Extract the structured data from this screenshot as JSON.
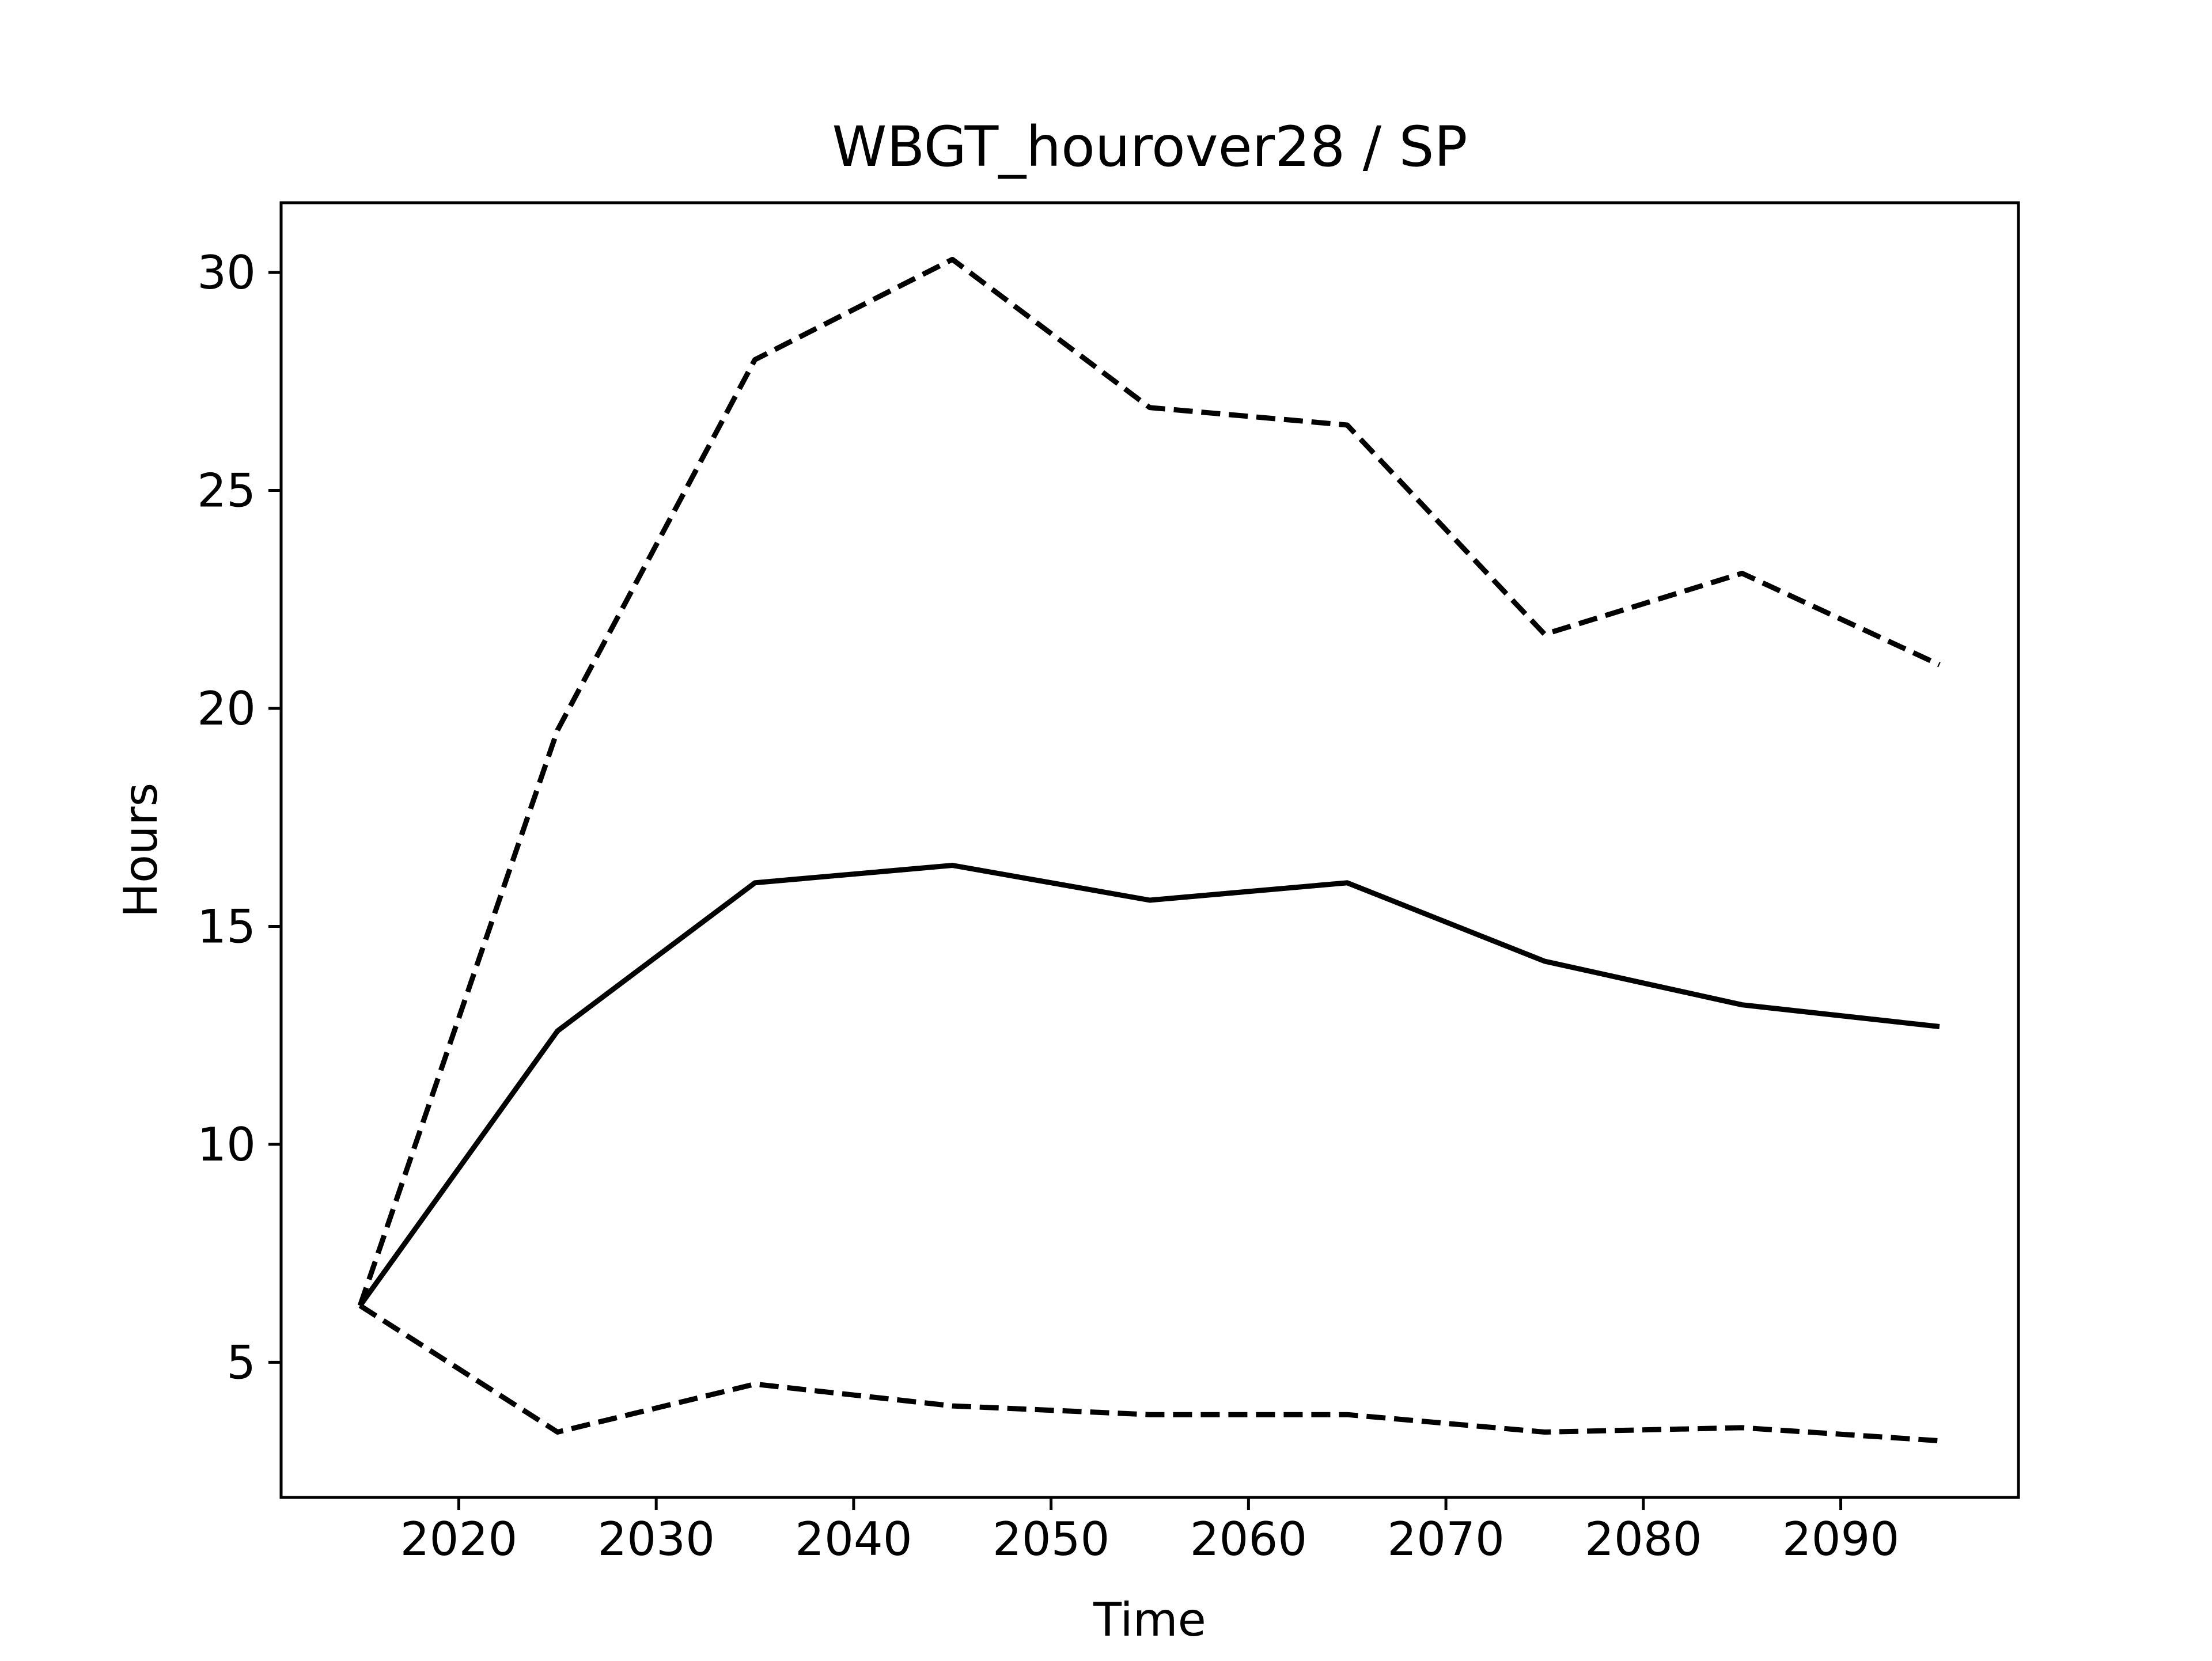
{
  "chart_data": {
    "type": "line",
    "title": "WBGT_hourover28 / SP",
    "xlabel": "Time",
    "ylabel": "Hours",
    "x": [
      2015,
      2025,
      2035,
      2045,
      2055,
      2065,
      2075,
      2085,
      2095
    ],
    "xlim": [
      2011,
      2099
    ],
    "ylim": [
      1.9,
      31.6
    ],
    "xticks": [
      2020,
      2030,
      2040,
      2050,
      2060,
      2070,
      2080,
      2090
    ],
    "yticks": [
      5,
      10,
      15,
      20,
      25,
      30
    ],
    "grid": false,
    "legend": "none",
    "series": [
      {
        "style": "solid",
        "color": "#000000",
        "values": [
          6.3,
          12.6,
          16.0,
          16.4,
          15.6,
          16.0,
          14.2,
          13.2,
          12.7
        ]
      },
      {
        "style": "dashed",
        "color": "#000000",
        "values": [
          6.3,
          19.5,
          28.0,
          30.3,
          26.9,
          26.5,
          21.7,
          23.1,
          21.0
        ]
      },
      {
        "style": "dashed",
        "color": "#000000",
        "values": [
          6.3,
          3.4,
          4.5,
          4.0,
          3.8,
          3.8,
          3.4,
          3.5,
          3.2
        ]
      }
    ]
  }
}
